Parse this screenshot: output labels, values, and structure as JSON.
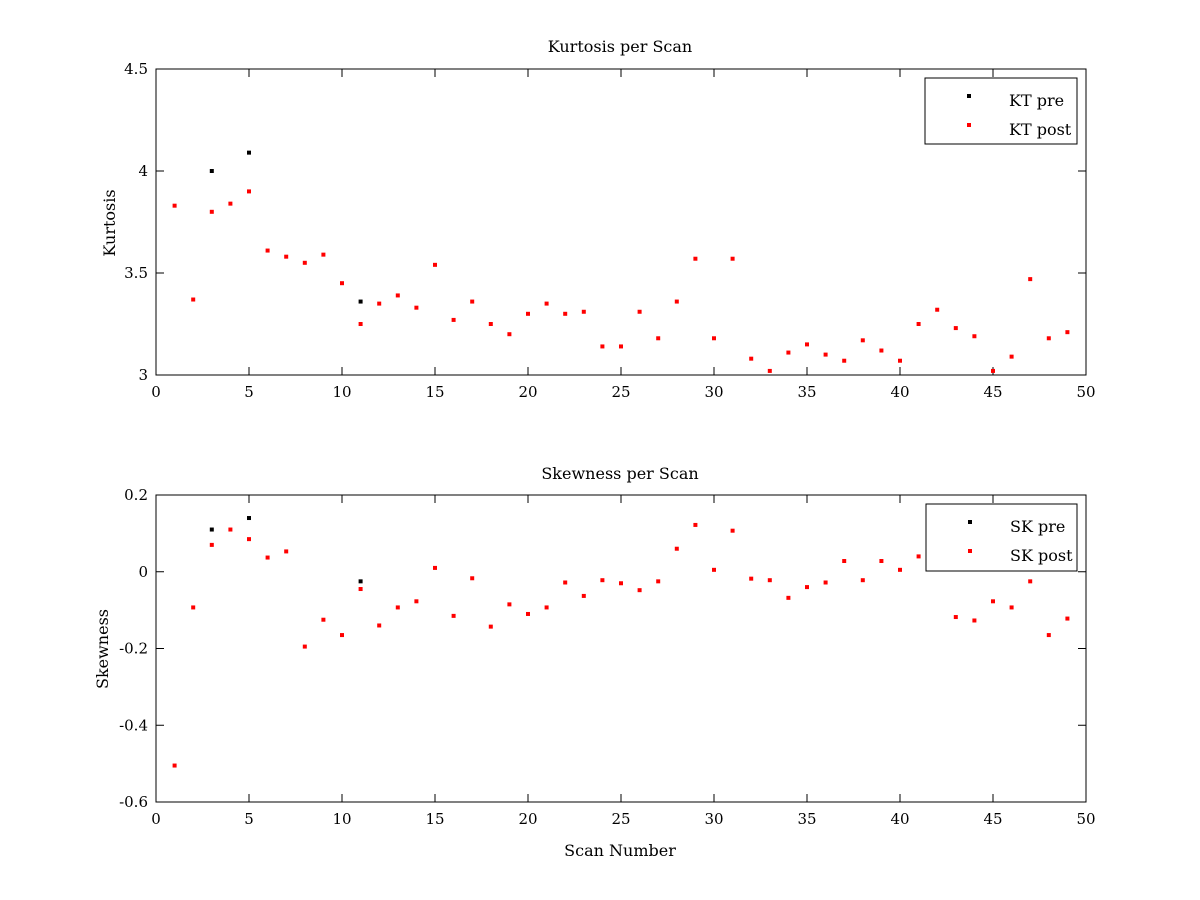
{
  "figure_background": "#ffffff",
  "chart_data": [
    {
      "type": "scatter",
      "title": "Kurtosis per Scan",
      "xlabel": "",
      "ylabel": "Kurtosis",
      "xlim": [
        0,
        50
      ],
      "ylim": [
        3,
        4.5
      ],
      "xticks": [
        "0",
        "5",
        "10",
        "15",
        "20",
        "25",
        "30",
        "35",
        "40",
        "45",
        "50"
      ],
      "yticks": [
        "3",
        "3.5",
        "4",
        "4.5"
      ],
      "grid": false,
      "legend_position": "top-right",
      "series": [
        {
          "name": "KT pre",
          "color": "#000000",
          "x": [
            3,
            5,
            11
          ],
          "y": [
            4.0,
            4.09,
            3.36
          ]
        },
        {
          "name": "KT post",
          "color": "#ff0000",
          "x": [
            1,
            2,
            3,
            4,
            5,
            6,
            7,
            8,
            9,
            10,
            11,
            12,
            13,
            14,
            15,
            16,
            17,
            18,
            19,
            20,
            21,
            22,
            23,
            24,
            25,
            26,
            27,
            28,
            29,
            30,
            31,
            32,
            33,
            34,
            35,
            36,
            37,
            38,
            39,
            40,
            41,
            42,
            43,
            44,
            45,
            46,
            47,
            48,
            49
          ],
          "y": [
            3.83,
            3.37,
            3.8,
            3.84,
            3.9,
            3.61,
            3.58,
            3.55,
            3.59,
            3.45,
            3.25,
            3.35,
            3.39,
            3.33,
            3.54,
            3.27,
            3.36,
            3.25,
            3.2,
            3.3,
            3.35,
            3.3,
            3.31,
            3.14,
            3.14,
            3.31,
            3.18,
            3.36,
            3.57,
            3.18,
            3.57,
            3.08,
            3.02,
            3.11,
            3.15,
            3.1,
            3.07,
            3.17,
            3.12,
            3.07,
            3.25,
            3.32,
            3.23,
            3.19,
            3.02,
            3.09,
            3.47,
            3.18,
            3.21
          ]
        }
      ]
    },
    {
      "type": "scatter",
      "title": "Skewness per Scan",
      "xlabel": "Scan Number",
      "ylabel": "Skewness",
      "xlim": [
        0,
        50
      ],
      "ylim": [
        -0.6,
        0.2
      ],
      "xticks": [
        "0",
        "5",
        "10",
        "15",
        "20",
        "25",
        "30",
        "35",
        "40",
        "45",
        "50"
      ],
      "yticks": [
        "-0.6",
        "-0.4",
        "-0.2",
        "0",
        "0.2"
      ],
      "grid": false,
      "legend_position": "top-right",
      "series": [
        {
          "name": "SK pre",
          "color": "#000000",
          "x": [
            3,
            5,
            11
          ],
          "y": [
            0.11,
            0.14,
            -0.025
          ]
        },
        {
          "name": "SK post",
          "color": "#ff0000",
          "x": [
            1,
            2,
            3,
            4,
            5,
            6,
            7,
            8,
            9,
            10,
            11,
            12,
            13,
            14,
            15,
            16,
            17,
            18,
            19,
            20,
            21,
            22,
            23,
            24,
            25,
            26,
            27,
            28,
            29,
            30,
            31,
            32,
            33,
            34,
            35,
            36,
            37,
            38,
            39,
            40,
            41,
            42,
            43,
            44,
            45,
            46,
            47,
            48,
            49
          ],
          "y": [
            -0.505,
            -0.093,
            0.07,
            0.11,
            0.085,
            0.037,
            0.053,
            -0.195,
            -0.125,
            -0.165,
            -0.045,
            -0.14,
            -0.093,
            -0.077,
            0.01,
            -0.115,
            -0.017,
            -0.143,
            -0.085,
            -0.11,
            -0.093,
            -0.028,
            -0.063,
            -0.022,
            -0.03,
            -0.048,
            -0.025,
            0.06,
            0.122,
            0.005,
            0.107,
            -0.018,
            -0.022,
            -0.068,
            -0.04,
            -0.028,
            0.028,
            -0.022,
            0.028,
            0.005,
            0.04,
            0.07,
            -0.118,
            -0.127,
            -0.077,
            -0.093,
            -0.025,
            -0.165,
            -0.122
          ]
        }
      ]
    }
  ]
}
